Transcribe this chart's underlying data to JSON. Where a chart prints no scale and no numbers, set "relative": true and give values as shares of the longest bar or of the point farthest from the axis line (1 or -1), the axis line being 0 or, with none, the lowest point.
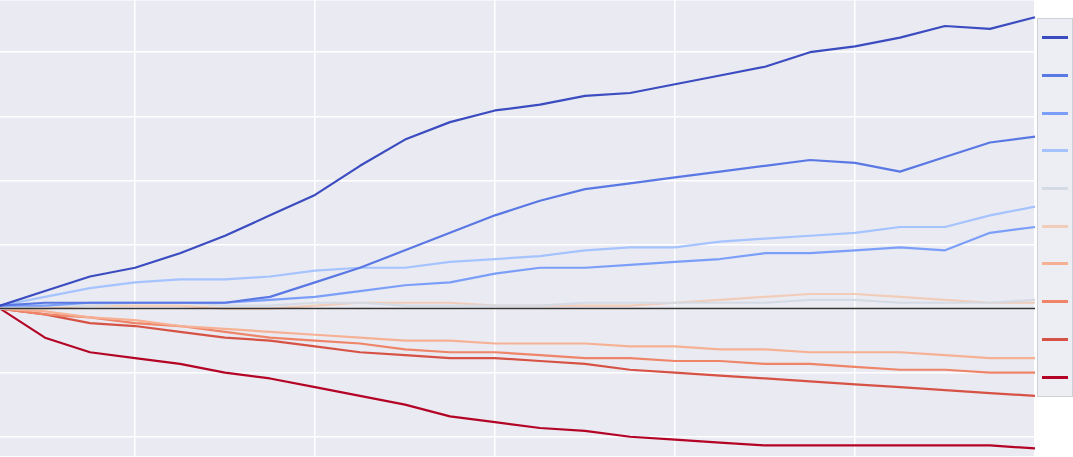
{
  "chart_data": {
    "type": "line",
    "relative": true,
    "grid": true,
    "marker": "none",
    "line_style": "solid",
    "categories": [
      null,
      null,
      null,
      null,
      null,
      null,
      null,
      null,
      null,
      null,
      null,
      null,
      null,
      null,
      null,
      null,
      null,
      null,
      null,
      null,
      null,
      null,
      null,
      null
    ],
    "series": [
      {
        "color": "#3b4cc0",
        "values": [
          0.01,
          0.06,
          0.11,
          0.14,
          0.19,
          0.25,
          0.32,
          0.39,
          0.49,
          0.58,
          0.64,
          0.68,
          0.7,
          0.73,
          0.74,
          0.77,
          0.8,
          0.83,
          0.88,
          0.9,
          0.93,
          0.97,
          0.96,
          1
        ]
      },
      {
        "color": "#5a78e4",
        "values": [
          0.01,
          0.02,
          0.02,
          0.02,
          0.02,
          0.02,
          0.04,
          0.09,
          0.14,
          0.2,
          0.26,
          0.32,
          0.37,
          0.41,
          0.43,
          0.45,
          0.47,
          0.49,
          0.51,
          0.5,
          0.47,
          0.52,
          0.57,
          0.59
        ]
      },
      {
        "color": "#7b9ff9",
        "values": [
          0.01,
          0.01,
          0.02,
          0.02,
          0.02,
          0.02,
          0.03,
          0.04,
          0.06,
          0.08,
          0.09,
          0.12,
          0.14,
          0.14,
          0.15,
          0.16,
          0.17,
          0.19,
          0.19,
          0.2,
          0.21,
          0.2,
          0.26,
          0.28
        ]
      },
      {
        "color": "#a5c3fe",
        "values": [
          0.01,
          0.04,
          0.07,
          0.09,
          0.1,
          0.1,
          0.11,
          0.13,
          0.14,
          0.14,
          0.16,
          0.17,
          0.18,
          0.2,
          0.21,
          0.21,
          0.23,
          0.24,
          0.25,
          0.26,
          0.28,
          0.28,
          0.32,
          0.35
        ]
      },
      {
        "color": "#d5dbe5",
        "values": [
          0,
          0.01,
          0.01,
          0.02,
          0.02,
          0.01,
          0.01,
          0.02,
          0.02,
          0.01,
          0.01,
          0.01,
          0.01,
          0.02,
          0.02,
          0.02,
          0.02,
          0.02,
          0.03,
          0.03,
          0.02,
          0.02,
          0.02,
          0.03
        ]
      },
      {
        "color": "#f1cdb9",
        "values": [
          0,
          0,
          0.01,
          0.01,
          0.01,
          0,
          0,
          0.01,
          0.02,
          0.02,
          0.02,
          0.01,
          0.01,
          0.01,
          0.01,
          0.02,
          0.03,
          0.04,
          0.05,
          0.05,
          0.04,
          0.03,
          0.02,
          0.02
        ]
      },
      {
        "color": "#f6b194",
        "values": [
          0,
          -0.01,
          -0.03,
          -0.04,
          -0.06,
          -0.07,
          -0.08,
          -0.09,
          -0.1,
          -0.11,
          -0.11,
          -0.12,
          -0.12,
          -0.12,
          -0.13,
          -0.13,
          -0.14,
          -0.14,
          -0.15,
          -0.15,
          -0.15,
          -0.16,
          -0.17,
          -0.17
        ]
      },
      {
        "color": "#ee8468",
        "values": [
          0,
          -0.02,
          -0.03,
          -0.05,
          -0.06,
          -0.08,
          -0.1,
          -0.11,
          -0.12,
          -0.14,
          -0.15,
          -0.15,
          -0.16,
          -0.17,
          -0.17,
          -0.18,
          -0.18,
          -0.19,
          -0.19,
          -0.2,
          -0.21,
          -0.21,
          -0.22,
          -0.22
        ]
      },
      {
        "color": "#d65244",
        "values": [
          0,
          -0.02,
          -0.05,
          -0.06,
          -0.08,
          -0.1,
          -0.11,
          -0.13,
          -0.15,
          -0.16,
          -0.17,
          -0.17,
          -0.18,
          -0.19,
          -0.21,
          -0.22,
          -0.23,
          -0.24,
          -0.25,
          -0.26,
          -0.27,
          -0.28,
          -0.29,
          -0.3
        ]
      },
      {
        "color": "#b40426",
        "values": [
          0,
          -0.1,
          -0.15,
          -0.17,
          -0.19,
          -0.22,
          -0.24,
          -0.27,
          -0.3,
          -0.33,
          -0.37,
          -0.39,
          -0.41,
          -0.42,
          -0.44,
          -0.45,
          -0.46,
          -0.47,
          -0.47,
          -0.47,
          -0.47,
          -0.47,
          -0.47,
          -0.48
        ]
      }
    ]
  }
}
